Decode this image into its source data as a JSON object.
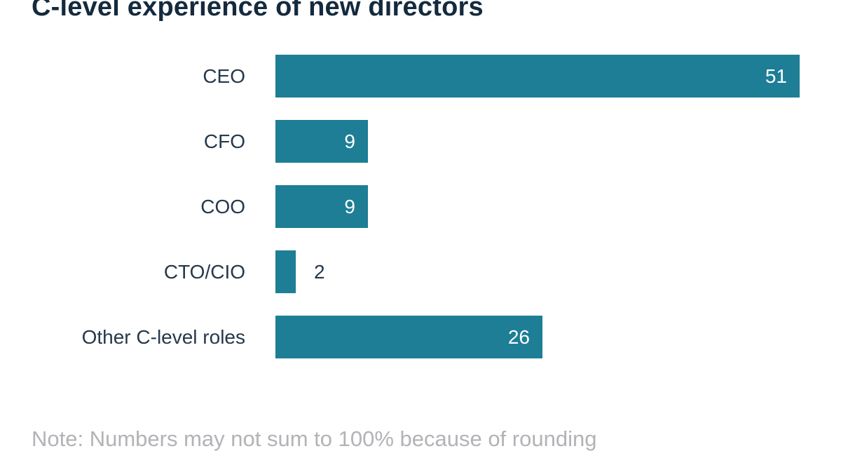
{
  "title": "C-level experience of new directors",
  "note": "Note: Numbers may not sum to 100% because of rounding",
  "colors": {
    "background": "#ffffff",
    "bar": "#1d7e95",
    "title_text": "#142a3e",
    "label_text": "#26384c",
    "value_inside_text": "#ffffff",
    "note_text": "#b3b3b7"
  },
  "chart_data": {
    "type": "bar",
    "orientation": "horizontal",
    "title": "C-level experience of new directors",
    "categories": [
      "CEO",
      "CFO",
      "COO",
      "CTO/CIO",
      "Other C-level roles"
    ],
    "values": [
      51,
      9,
      9,
      2,
      26
    ],
    "xlabel": "",
    "ylabel": "",
    "xlim": [
      0,
      51
    ],
    "grid": false,
    "legend_position": "none",
    "value_labels_shown": true,
    "note": "Note: Numbers may not sum to 100% because of rounding"
  }
}
